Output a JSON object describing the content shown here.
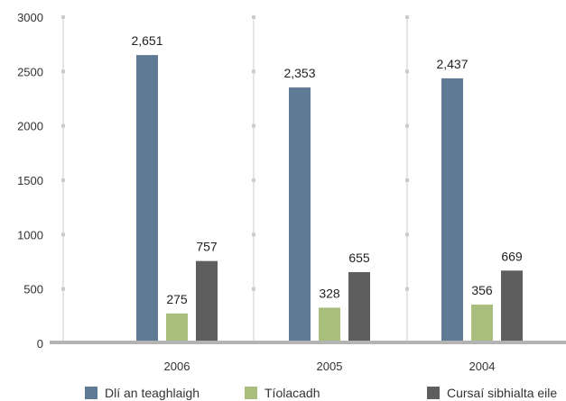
{
  "chart_data": {
    "type": "bar",
    "categories": [
      "2006",
      "2005",
      "2004"
    ],
    "series": [
      {
        "name": "Dlí an teaghlaigh",
        "values": [
          2651,
          2353,
          2437
        ],
        "labels": [
          "2,651",
          "2,353",
          "2,437"
        ],
        "color": "#5f7a94"
      },
      {
        "name": "Tíolacadh",
        "values": [
          275,
          328,
          356
        ],
        "labels": [
          "275",
          "328",
          "356"
        ],
        "color": "#a9bd7d"
      },
      {
        "name": "Cursaí sibhialta eile",
        "values": [
          757,
          655,
          669
        ],
        "labels": [
          "757",
          "655",
          "669"
        ],
        "color": "#5e5e5e"
      }
    ],
    "yticks": [
      "0",
      "500",
      "1000",
      "1500",
      "2000",
      "2500",
      "3000"
    ],
    "ylim": [
      0,
      3000
    ],
    "grid": "vertical dashed separators between categories",
    "legend_position": "bottom",
    "title": "",
    "xlabel": "",
    "ylabel": "",
    "colors": {
      "axis": "#b3b3b3",
      "separator": "#cccccc",
      "text": "#333333"
    }
  }
}
